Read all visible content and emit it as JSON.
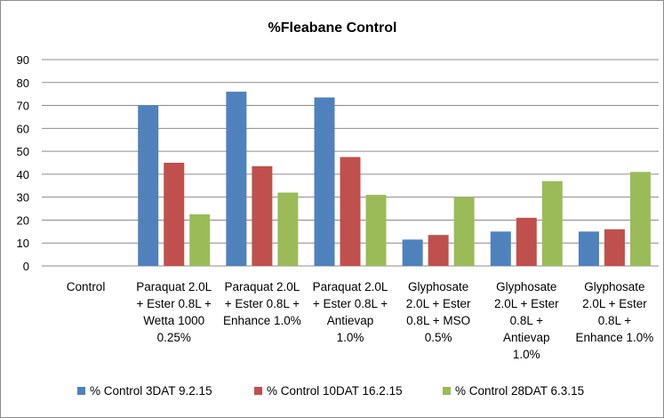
{
  "chart_data": {
    "type": "bar",
    "title": "%Fleabane Control",
    "xlabel": "",
    "ylabel": "",
    "ylim": [
      0,
      90
    ],
    "yticks": [
      0,
      10,
      20,
      30,
      40,
      50,
      60,
      70,
      80,
      90
    ],
    "grid": true,
    "legend_position": "bottom",
    "categories": [
      [
        "Control"
      ],
      [
        "Paraquat 2.0L",
        "+ Ester 0.8L +",
        "Wetta 1000",
        "0.25%"
      ],
      [
        "Paraquat 2.0L",
        "+ Ester 0.8L +",
        "Enhance 1.0%"
      ],
      [
        "Paraquat 2.0L",
        "+ Ester 0.8L +",
        "Antievap",
        "1.0%"
      ],
      [
        "Glyphosate",
        "2.0L + Ester",
        "0.8L + MSO",
        "0.5%"
      ],
      [
        "Glyphosate",
        "2.0L + Ester",
        "0.8L +",
        "Antievap",
        "1.0%"
      ],
      [
        "Glyphosate",
        "2.0L + Ester",
        "0.8L +",
        "Enhance 1.0%"
      ]
    ],
    "series": [
      {
        "name": "% Control 3DAT 9.2.15",
        "color": "#4f81bd",
        "values": [
          0,
          70,
          76,
          73.5,
          11.5,
          15,
          15
        ]
      },
      {
        "name": "% Control 10DAT 16.2.15",
        "color": "#c0504d",
        "values": [
          0,
          45,
          43.5,
          47.5,
          13.5,
          21,
          16
        ]
      },
      {
        "name": "% Control 28DAT 6.3.15",
        "color": "#9bbb59",
        "values": [
          0,
          22.5,
          32,
          31,
          30,
          37,
          41
        ]
      }
    ]
  }
}
